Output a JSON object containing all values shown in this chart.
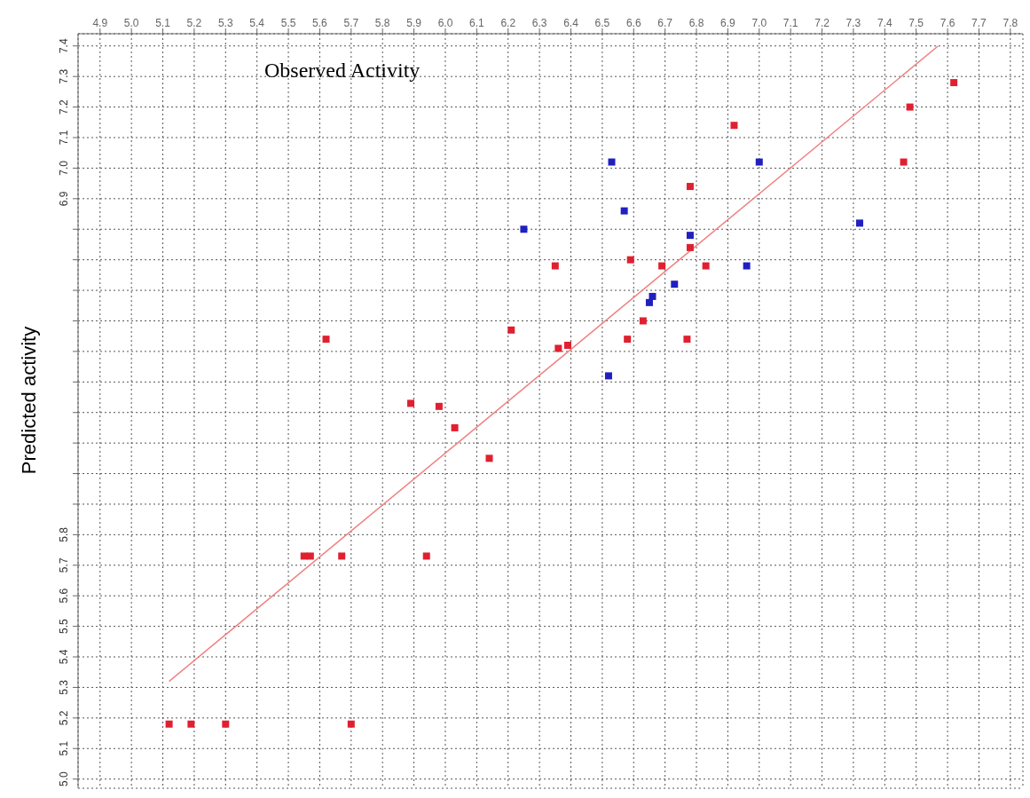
{
  "chart_data": {
    "type": "scatter",
    "xlabel": "Observed Activity",
    "ylabel": "Predicted activity",
    "grid": true,
    "xlim": [
      4.83,
      7.84
    ],
    "ylim": [
      4.97,
      7.44
    ],
    "xticks": [
      {
        "value": 4.9,
        "label": "4.9"
      },
      {
        "value": 5.0,
        "label": "5.0"
      },
      {
        "value": 5.1,
        "label": "5.1"
      },
      {
        "value": 5.2,
        "label": "5.2"
      },
      {
        "value": 5.3,
        "label": "5.3"
      },
      {
        "value": 5.4,
        "label": "5.4"
      },
      {
        "value": 5.5,
        "label": "5.5"
      },
      {
        "value": 5.6,
        "label": "5.6"
      },
      {
        "value": 5.7,
        "label": "5.7"
      },
      {
        "value": 5.8,
        "label": "5.8"
      },
      {
        "value": 5.9,
        "label": "5.9"
      },
      {
        "value": 6.0,
        "label": "6.0"
      },
      {
        "value": 6.1,
        "label": "6.1"
      },
      {
        "value": 6.2,
        "label": "6.2"
      },
      {
        "value": 6.3,
        "label": "6.3"
      },
      {
        "value": 6.4,
        "label": "6.4"
      },
      {
        "value": 6.5,
        "label": "6.5"
      },
      {
        "value": 6.6,
        "label": "6.6"
      },
      {
        "value": 6.7,
        "label": "6.7"
      },
      {
        "value": 6.8,
        "label": "6.8"
      },
      {
        "value": 6.9,
        "label": "6.9"
      },
      {
        "value": 7.0,
        "label": "7.0"
      },
      {
        "value": 7.1,
        "label": "7.1"
      },
      {
        "value": 7.2,
        "label": "7.2"
      },
      {
        "value": 7.3,
        "label": "7.3"
      },
      {
        "value": 7.4,
        "label": "7.4"
      },
      {
        "value": 7.5,
        "label": "7.5"
      },
      {
        "value": 7.6,
        "label": "7.6"
      },
      {
        "value": 7.7,
        "label": "7.7"
      },
      {
        "value": 7.8,
        "label": "7.8"
      }
    ],
    "yticks": [
      {
        "value": 5.0,
        "label": "5.0"
      },
      {
        "value": 5.1,
        "label": "5.1"
      },
      {
        "value": 5.2,
        "label": "5.2"
      },
      {
        "value": 5.3,
        "label": "5.3"
      },
      {
        "value": 5.4,
        "label": "5.4"
      },
      {
        "value": 5.5,
        "label": "5.5"
      },
      {
        "value": 5.6,
        "label": "5.6"
      },
      {
        "value": 5.7,
        "label": "5.7"
      },
      {
        "value": 5.8,
        "label": "5.8"
      },
      {
        "value": 5.9,
        "label": null
      },
      {
        "value": 6.0,
        "label": null
      },
      {
        "value": 6.1,
        "label": null
      },
      {
        "value": 6.2,
        "label": null
      },
      {
        "value": 6.3,
        "label": null
      },
      {
        "value": 6.4,
        "label": null
      },
      {
        "value": 6.5,
        "label": null
      },
      {
        "value": 6.6,
        "label": null
      },
      {
        "value": 6.7,
        "label": null
      },
      {
        "value": 6.8,
        "label": null
      },
      {
        "value": 6.9,
        "label": "6.9"
      },
      {
        "value": 7.0,
        "label": "7.0"
      },
      {
        "value": 7.1,
        "label": "7.1"
      },
      {
        "value": 7.2,
        "label": "7.2"
      },
      {
        "value": 7.3,
        "label": "7.3"
      },
      {
        "value": 7.4,
        "label": "7.4"
      }
    ],
    "series": [
      {
        "color": "#e02030",
        "marker": "square",
        "x": [
          5.12,
          5.19,
          5.3,
          5.7,
          5.55,
          5.57,
          5.67,
          5.94,
          5.62,
          5.89,
          5.98,
          6.03,
          6.14,
          6.21,
          6.35,
          6.36,
          6.39,
          6.92,
          6.78,
          6.78,
          6.59,
          6.69,
          6.83,
          6.63,
          6.58,
          6.77,
          7.46,
          7.48,
          7.62
        ],
        "values": [
          5.18,
          5.18,
          5.18,
          5.18,
          5.73,
          5.73,
          5.73,
          5.73,
          6.44,
          6.23,
          6.22,
          6.15,
          6.05,
          6.47,
          6.68,
          6.41,
          6.42,
          7.14,
          6.94,
          6.74,
          6.7,
          6.68,
          6.68,
          6.5,
          6.44,
          6.44,
          7.02,
          7.2,
          7.28
        ]
      },
      {
        "color": "#2020c0",
        "marker": "square",
        "x": [
          6.53,
          6.57,
          6.25,
          6.78,
          7.0,
          7.32,
          6.96,
          6.73,
          6.66,
          6.65,
          6.52
        ],
        "values": [
          7.02,
          6.86,
          6.8,
          6.78,
          7.02,
          6.82,
          6.68,
          6.62,
          6.58,
          6.56,
          6.32
        ]
      },
      {
        "type": "line",
        "color": "#f08080",
        "x": [
          5.12,
          7.57
        ],
        "values": [
          5.32,
          7.4
        ]
      }
    ]
  }
}
